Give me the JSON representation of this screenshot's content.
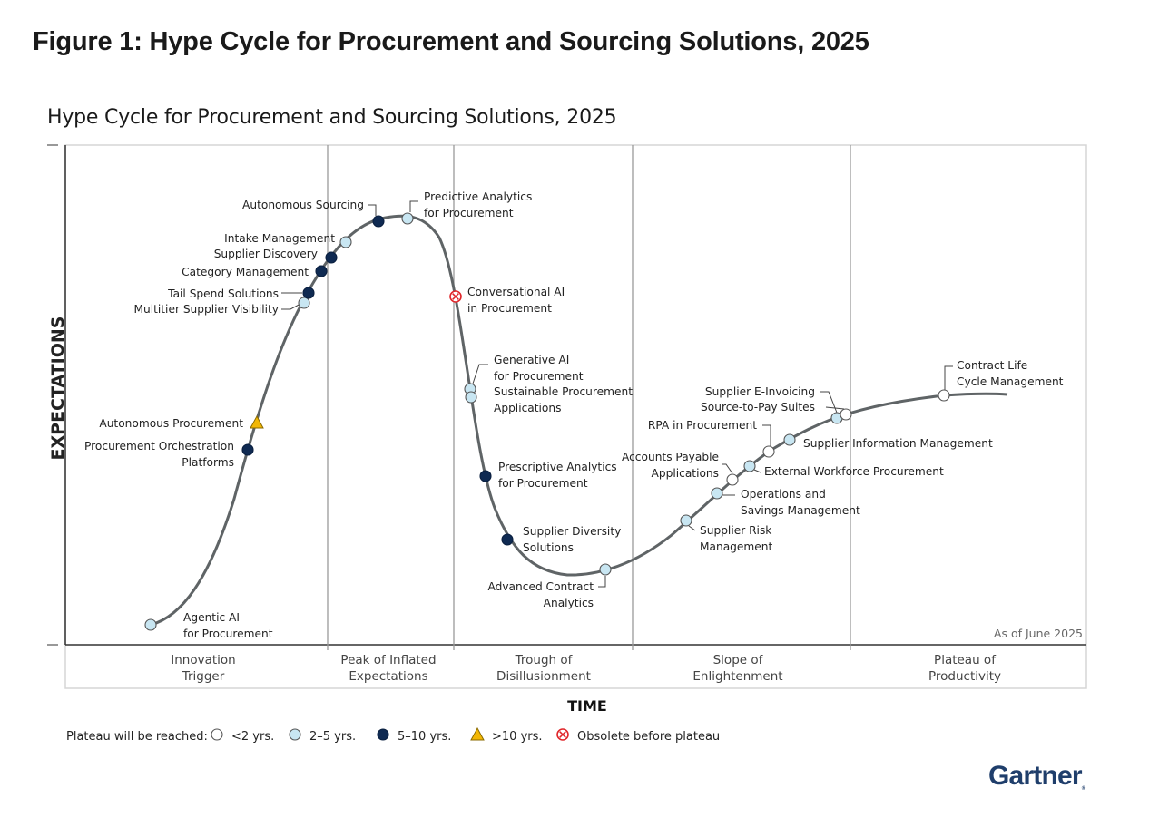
{
  "figure_title": "Figure 1: Hype Cycle for Procurement and Sourcing Solutions, 2025",
  "chart_title": "Hype Cycle for Procurement and Sourcing Solutions, 2025",
  "y_axis_label": "EXPECTATIONS",
  "x_axis_label": "TIME",
  "as_of": "As of June 2025",
  "logo": "Gartner",
  "phases": [
    [
      "Innovation",
      "Trigger"
    ],
    [
      "Peak of Inflated",
      "Expectations"
    ],
    [
      "Trough of",
      "Disillusionment"
    ],
    [
      "Slope of",
      "Enlightenment"
    ],
    [
      "Plateau of",
      "Productivity"
    ]
  ],
  "legend": {
    "title": "Plateau will be reached:",
    "items": [
      {
        "key": "lt2",
        "label": "<2 yrs."
      },
      {
        "key": "2to5",
        "label": "2–5 yrs."
      },
      {
        "key": "5to10",
        "label": "5–10 yrs."
      },
      {
        "key": "gt10",
        "label": ">10 yrs."
      },
      {
        "key": "obsolete",
        "label": "Obsolete before plateau"
      }
    ]
  },
  "colors": {
    "lt2": "#ffffff",
    "2to5": "#c8e6f2",
    "5to10": "#0f2a52",
    "gt10": "#f2b705",
    "obsolete": "#e0262a",
    "curve": "#5f6466",
    "grid": "#9a9a9a"
  },
  "technologies": [
    {
      "name": [
        "Agentic AI",
        "for Procurement"
      ],
      "category": "2to5"
    },
    {
      "name": [
        "Procurement Orchestration",
        "Platforms"
      ],
      "category": "5to10"
    },
    {
      "name": [
        "Autonomous Procurement"
      ],
      "category": "gt10"
    },
    {
      "name": [
        "Multitier Supplier Visibility"
      ],
      "category": "2to5"
    },
    {
      "name": [
        "Tail Spend Solutions"
      ],
      "category": "5to10"
    },
    {
      "name": [
        "Category Management"
      ],
      "category": "5to10"
    },
    {
      "name": [
        "Supplier Discovery"
      ],
      "category": "5to10"
    },
    {
      "name": [
        "Intake Management"
      ],
      "category": "2to5"
    },
    {
      "name": [
        "Autonomous Sourcing"
      ],
      "category": "5to10"
    },
    {
      "name": [
        "Predictive Analytics",
        "for Procurement"
      ],
      "category": "2to5"
    },
    {
      "name": [
        "Conversational AI",
        "in Procurement"
      ],
      "category": "obsolete"
    },
    {
      "name": [
        "Generative AI",
        "for Procurement"
      ],
      "category": "2to5"
    },
    {
      "name": [
        "Sustainable Procurement",
        "Applications"
      ],
      "category": "2to5"
    },
    {
      "name": [
        "Prescriptive Analytics",
        "for Procurement"
      ],
      "category": "5to10"
    },
    {
      "name": [
        "Supplier Diversity",
        "Solutions"
      ],
      "category": "5to10"
    },
    {
      "name": [
        "Advanced Contract",
        "Analytics"
      ],
      "category": "2to5"
    },
    {
      "name": [
        "Supplier Risk",
        "Management"
      ],
      "category": "2to5"
    },
    {
      "name": [
        "Operations and",
        "Savings Management"
      ],
      "category": "2to5"
    },
    {
      "name": [
        "Accounts Payable",
        "Applications"
      ],
      "category": "lt2"
    },
    {
      "name": [
        "External Workforce Procurement"
      ],
      "category": "2to5"
    },
    {
      "name": [
        "RPA in Procurement"
      ],
      "category": "lt2"
    },
    {
      "name": [
        "Supplier Information Management"
      ],
      "category": "2to5"
    },
    {
      "name": [
        "Supplier E-Invoicing"
      ],
      "category": "2to5"
    },
    {
      "name": [
        "Source-to-Pay Suites"
      ],
      "category": "lt2"
    },
    {
      "name": [
        "Contract Life",
        "Cycle Management"
      ],
      "category": "lt2"
    }
  ]
}
